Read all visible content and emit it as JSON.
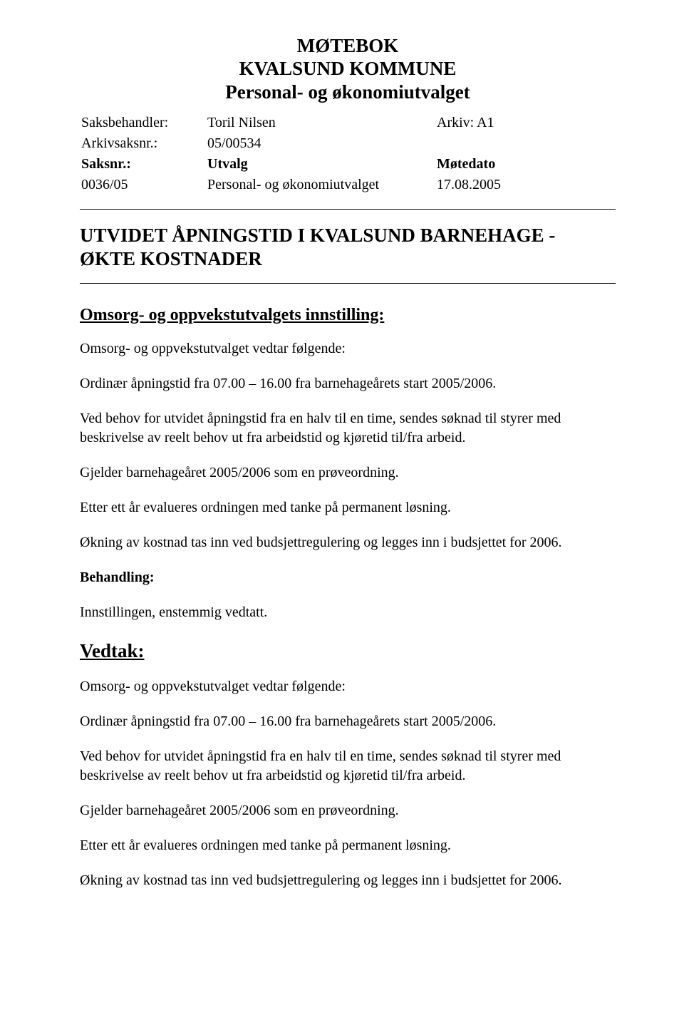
{
  "header": {
    "line1": "MØTEBOK",
    "line2": "KVALSUND KOMMUNE",
    "line3": "Personal- og økonomiutvalget"
  },
  "meta": {
    "labels": {
      "saksbehandler": "Saksbehandler:",
      "arkivsaksnr": "Arkivsaksnr.:",
      "saksnr": "Saksnr.:",
      "utvalg": "Utvalg",
      "arkiv": "Arkiv: A1",
      "motedato": "Møtedato"
    },
    "values": {
      "saksbehandler": "Toril Nilsen",
      "arkivsaksnr": "05/00534",
      "saksnr": "0036/05",
      "utvalg": "Personal- og økonomiutvalget",
      "motedato": "17.08.2005"
    }
  },
  "case_title": "UTVIDET ÅPNINGSTID I KVALSUND BARNEHAGE - ØKTE KOSTNADER",
  "innstilling": {
    "heading": "Omsorg- og oppvekstutvalgets innstilling:",
    "p1": "Omsorg- og oppvekstutvalget vedtar følgende:",
    "p2": "Ordinær åpningstid fra 07.00 – 16.00 fra barnehageårets start 2005/2006.",
    "p3": "Ved behov for utvidet åpningstid fra en halv til en time, sendes søknad til styrer med beskrivelse av reelt behov ut fra arbeidstid og kjøretid til/fra arbeid.",
    "p4": "Gjelder barnehageåret 2005/2006 som en prøveordning.",
    "p5": "Etter ett år evalueres ordningen med tanke på permanent løsning.",
    "p6": "Økning av kostnad tas inn ved budsjettregulering og legges inn i budsjettet for 2006."
  },
  "behandling": {
    "label": "Behandling:",
    "text": "Innstillingen, enstemmig vedtatt."
  },
  "vedtak": {
    "heading": "Vedtak:",
    "p1": "Omsorg- og oppvekstutvalget vedtar følgende:",
    "p2": "Ordinær åpningstid fra 07.00 – 16.00 fra barnehageårets start 2005/2006.",
    "p3": "Ved behov for utvidet åpningstid fra en halv til en time, sendes søknad til styrer med beskrivelse av reelt behov ut fra arbeidstid og kjøretid til/fra arbeid.",
    "p4": "Gjelder barnehageåret 2005/2006 som en prøveordning.",
    "p5": "Etter ett år evalueres ordningen med tanke på permanent løsning.",
    "p6": "Økning av kostnad tas inn ved budsjettregulering og legges inn i budsjettet for 2006."
  }
}
